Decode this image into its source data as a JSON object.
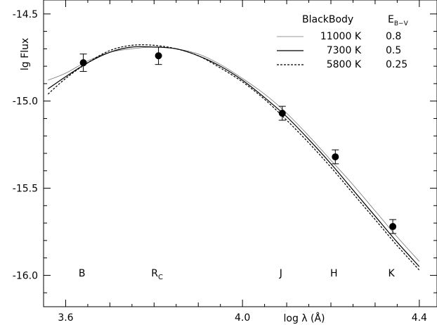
{
  "chart_data": {
    "type": "line",
    "title": "",
    "xlabel": "log λ (Å)",
    "ylabel": "lg Flux",
    "xlim": [
      3.55,
      4.44
    ],
    "ylim": [
      -16.18,
      -14.42
    ],
    "grid": false,
    "legend_position": "top-right",
    "legend": {
      "header_model": "BlackBody",
      "header_ebv_main": "E",
      "header_ebv_sub": "B−V"
    },
    "x_ticks": [
      {
        "value": 3.6,
        "label": "3.6"
      },
      {
        "value": 4.0,
        "label": "4.0"
      },
      {
        "value": 4.4,
        "label": "4.4"
      }
    ],
    "y_ticks": [
      {
        "value": -14.5,
        "label": "-14.5"
      },
      {
        "value": -15.0,
        "label": "-15.0"
      },
      {
        "value": -15.5,
        "label": "-15.5"
      },
      {
        "value": -16.0,
        "label": "-16.0"
      }
    ],
    "series": [
      {
        "name": "11000 K",
        "ebv": "0.8",
        "style": "thin",
        "color": "#777777",
        "x": [
          3.56,
          3.6,
          3.65,
          3.7,
          3.75,
          3.8,
          3.85,
          3.9,
          3.95,
          4.0,
          4.05,
          4.1,
          4.15,
          4.2,
          4.25,
          4.3,
          4.35,
          4.4
        ],
        "y": [
          -14.88,
          -14.84,
          -14.77,
          -14.72,
          -14.7,
          -14.69,
          -14.7,
          -14.73,
          -14.79,
          -14.87,
          -14.96,
          -15.07,
          -15.2,
          -15.34,
          -15.48,
          -15.63,
          -15.78,
          -15.92
        ]
      },
      {
        "name": "7300 K",
        "ebv": "0.5",
        "style": "solid",
        "color": "#000000",
        "x": [
          3.56,
          3.6,
          3.65,
          3.7,
          3.75,
          3.8,
          3.85,
          3.9,
          3.95,
          4.0,
          4.05,
          4.1,
          4.15,
          4.2,
          4.25,
          4.3,
          4.35,
          4.4
        ],
        "y": [
          -14.93,
          -14.86,
          -14.78,
          -14.72,
          -14.69,
          -14.69,
          -14.7,
          -14.74,
          -14.8,
          -14.88,
          -14.98,
          -15.09,
          -15.22,
          -15.36,
          -15.51,
          -15.66,
          -15.81,
          -15.95
        ]
      },
      {
        "name": "5800 K",
        "ebv": "0.25",
        "style": "dashed",
        "color": "#000000",
        "x": [
          3.56,
          3.6,
          3.65,
          3.7,
          3.75,
          3.8,
          3.85,
          3.9,
          3.95,
          4.0,
          4.05,
          4.1,
          4.15,
          4.2,
          4.25,
          4.3,
          4.35,
          4.4
        ],
        "y": [
          -14.96,
          -14.87,
          -14.78,
          -14.71,
          -14.68,
          -14.68,
          -14.7,
          -14.74,
          -14.81,
          -14.89,
          -14.99,
          -15.11,
          -15.24,
          -15.38,
          -15.53,
          -15.68,
          -15.83,
          -15.97
        ]
      }
    ],
    "observations": [
      {
        "band": "B",
        "band_sub": "",
        "x": 3.64,
        "y": -14.78,
        "err": 0.05
      },
      {
        "band": "R",
        "band_sub": "C",
        "x": 3.81,
        "y": -14.74,
        "err": 0.05
      },
      {
        "band": "J",
        "band_sub": "",
        "x": 4.09,
        "y": -15.07,
        "err": 0.04
      },
      {
        "band": "H",
        "band_sub": "",
        "x": 4.21,
        "y": -15.32,
        "err": 0.04
      },
      {
        "band": "K",
        "band_sub": "",
        "x": 4.34,
        "y": -15.72,
        "err": 0.04
      }
    ]
  }
}
